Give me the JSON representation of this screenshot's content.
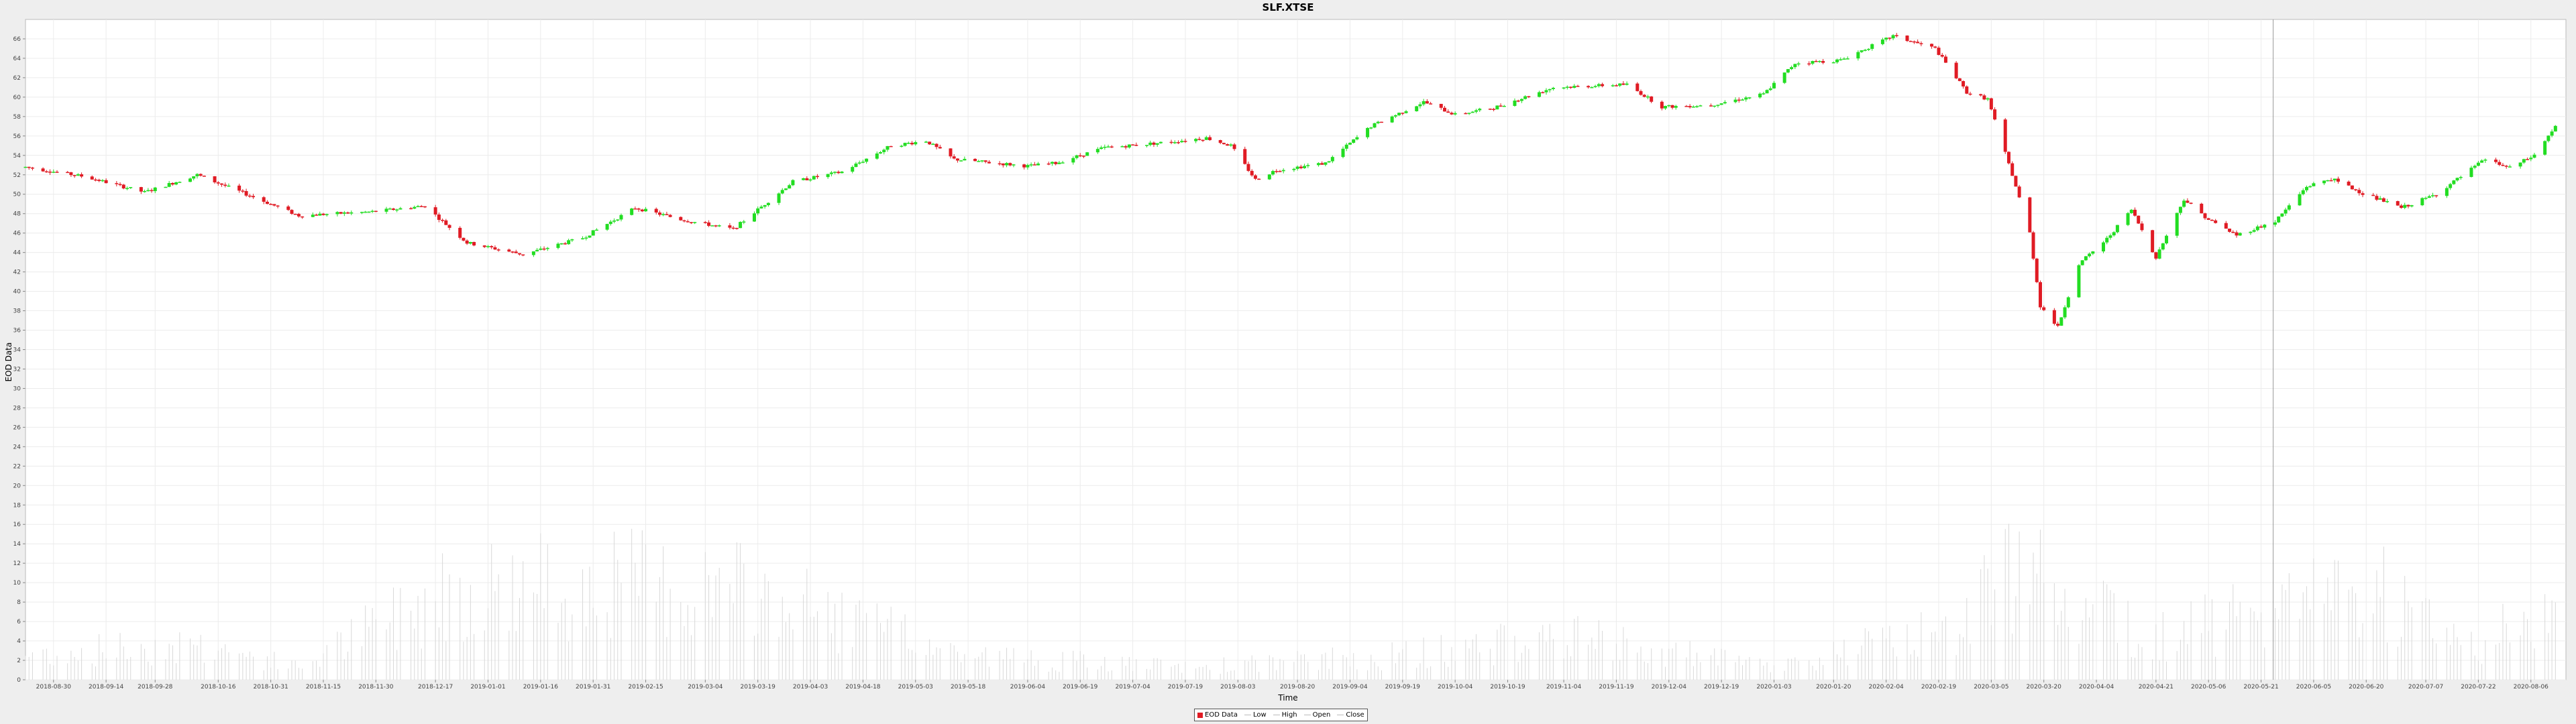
{
  "chart_data": {
    "type": "candlestick",
    "title": "SLF.XTSE",
    "xlabel": "Time",
    "ylabel": "EOD Data",
    "ylim": [
      0,
      68
    ],
    "yticks": [
      0,
      2,
      4,
      6,
      8,
      10,
      12,
      14,
      16,
      18,
      20,
      22,
      24,
      26,
      28,
      30,
      32,
      34,
      36,
      38,
      40,
      42,
      44,
      46,
      48,
      50,
      52,
      54,
      56,
      58,
      60,
      62,
      64,
      66
    ],
    "xlim": [
      "2018-08-22",
      "2020-08-16"
    ],
    "x_tick_labels": [
      "2018-08-30",
      "2018-09-14",
      "2018-09-28",
      "2018-10-16",
      "2018-10-31",
      "2018-11-15",
      "2018-11-30",
      "2018-12-17",
      "2019-01-01",
      "2019-01-16",
      "2019-01-31",
      "2019-02-15",
      "2019-03-04",
      "2019-03-19",
      "2019-04-03",
      "2019-04-18",
      "2019-05-03",
      "2019-05-18",
      "2019-06-04",
      "2019-06-19",
      "2019-07-04",
      "2019-07-19",
      "2019-08-03",
      "2019-08-20",
      "2019-09-04",
      "2019-09-19",
      "2019-10-04",
      "2019-10-19",
      "2019-11-04",
      "2019-11-19",
      "2019-12-04",
      "2019-12-19",
      "2020-01-03",
      "2020-01-20",
      "2020-02-04",
      "2020-02-19",
      "2020-03-05",
      "2020-03-20",
      "2020-04-04",
      "2020-04-21",
      "2020-05-06",
      "2020-05-21",
      "2020-06-05",
      "2020-06-20",
      "2020-07-07",
      "2020-07-22",
      "2020-08-06"
    ],
    "grid": true,
    "legend_position": "bottom-center",
    "legend": [
      "EOD Data",
      "Low",
      "High",
      "Open",
      "Close"
    ],
    "series": [
      {
        "name": "Close",
        "x": [
          "2018-08-22",
          "2018-09-08",
          "2018-09-25",
          "2018-10-10",
          "2018-10-22",
          "2018-11-08",
          "2018-11-29",
          "2018-12-14",
          "2018-12-26",
          "2019-01-11",
          "2019-01-28",
          "2019-02-12",
          "2019-02-25",
          "2019-03-12",
          "2019-03-29",
          "2019-04-12",
          "2019-04-26",
          "2019-05-06",
          "2019-05-14",
          "2019-06-04",
          "2019-06-12",
          "2019-06-26",
          "2019-07-12",
          "2019-07-25",
          "2019-08-01",
          "2019-08-08",
          "2019-08-14",
          "2019-08-28",
          "2019-09-10",
          "2019-09-25",
          "2019-10-04",
          "2019-10-15",
          "2019-11-01",
          "2019-11-22",
          "2019-12-02",
          "2019-12-16",
          "2019-12-31",
          "2020-01-09",
          "2020-01-22",
          "2020-02-06",
          "2020-02-18",
          "2020-02-27",
          "2020-03-04",
          "2020-03-11",
          "2020-03-16",
          "2020-03-19",
          "2020-03-24",
          "2020-03-30",
          "2020-04-07",
          "2020-04-14",
          "2020-04-21",
          "2020-04-29",
          "2020-05-06",
          "2020-05-14",
          "2020-05-25",
          "2020-06-03",
          "2020-06-10",
          "2020-06-19",
          "2020-06-30",
          "2020-07-10",
          "2020-07-24",
          "2020-07-31",
          "2020-08-07",
          "2020-08-13"
        ],
        "values": [
          52.8,
          51.8,
          50.2,
          52.0,
          50.3,
          47.8,
          48.2,
          48.8,
          45.0,
          43.8,
          45.5,
          48.6,
          47.4,
          46.4,
          51.3,
          52.3,
          55.0,
          55.5,
          53.6,
          52.9,
          53.2,
          54.8,
          55.3,
          55.8,
          55.0,
          51.5,
          52.5,
          53.2,
          57.0,
          59.5,
          58.2,
          58.9,
          61.0,
          61.3,
          59.0,
          59.2,
          60.3,
          63.5,
          63.8,
          66.3,
          65.0,
          60.5,
          59.8,
          52.0,
          46.0,
          38.5,
          36.3,
          42.8,
          45.4,
          48.4,
          43.5,
          49.5,
          47.4,
          45.8,
          47.2,
          50.8,
          51.6,
          50.1,
          48.6,
          50.0,
          53.6,
          52.7,
          54.0,
          57.0
        ]
      },
      {
        "name": "EOD Data",
        "x": [
          "2018-08-22",
          "2018-10-10",
          "2018-11-08",
          "2018-12-20",
          "2019-02-15",
          "2019-03-19",
          "2019-05-18",
          "2019-07-19",
          "2019-09-19",
          "2019-11-04",
          "2020-01-03",
          "2020-02-19",
          "2020-03-11",
          "2020-03-20",
          "2020-03-27",
          "2020-04-21",
          "2020-05-21",
          "2020-06-05",
          "2020-06-20",
          "2020-07-22",
          "2020-08-13"
        ],
        "volume": [
          4,
          6,
          2,
          15,
          16,
          14,
          4,
          2,
          4,
          7,
          2,
          8,
          17,
          21,
          15,
          7,
          11,
          13,
          16,
          6,
          12
        ]
      }
    ]
  }
}
